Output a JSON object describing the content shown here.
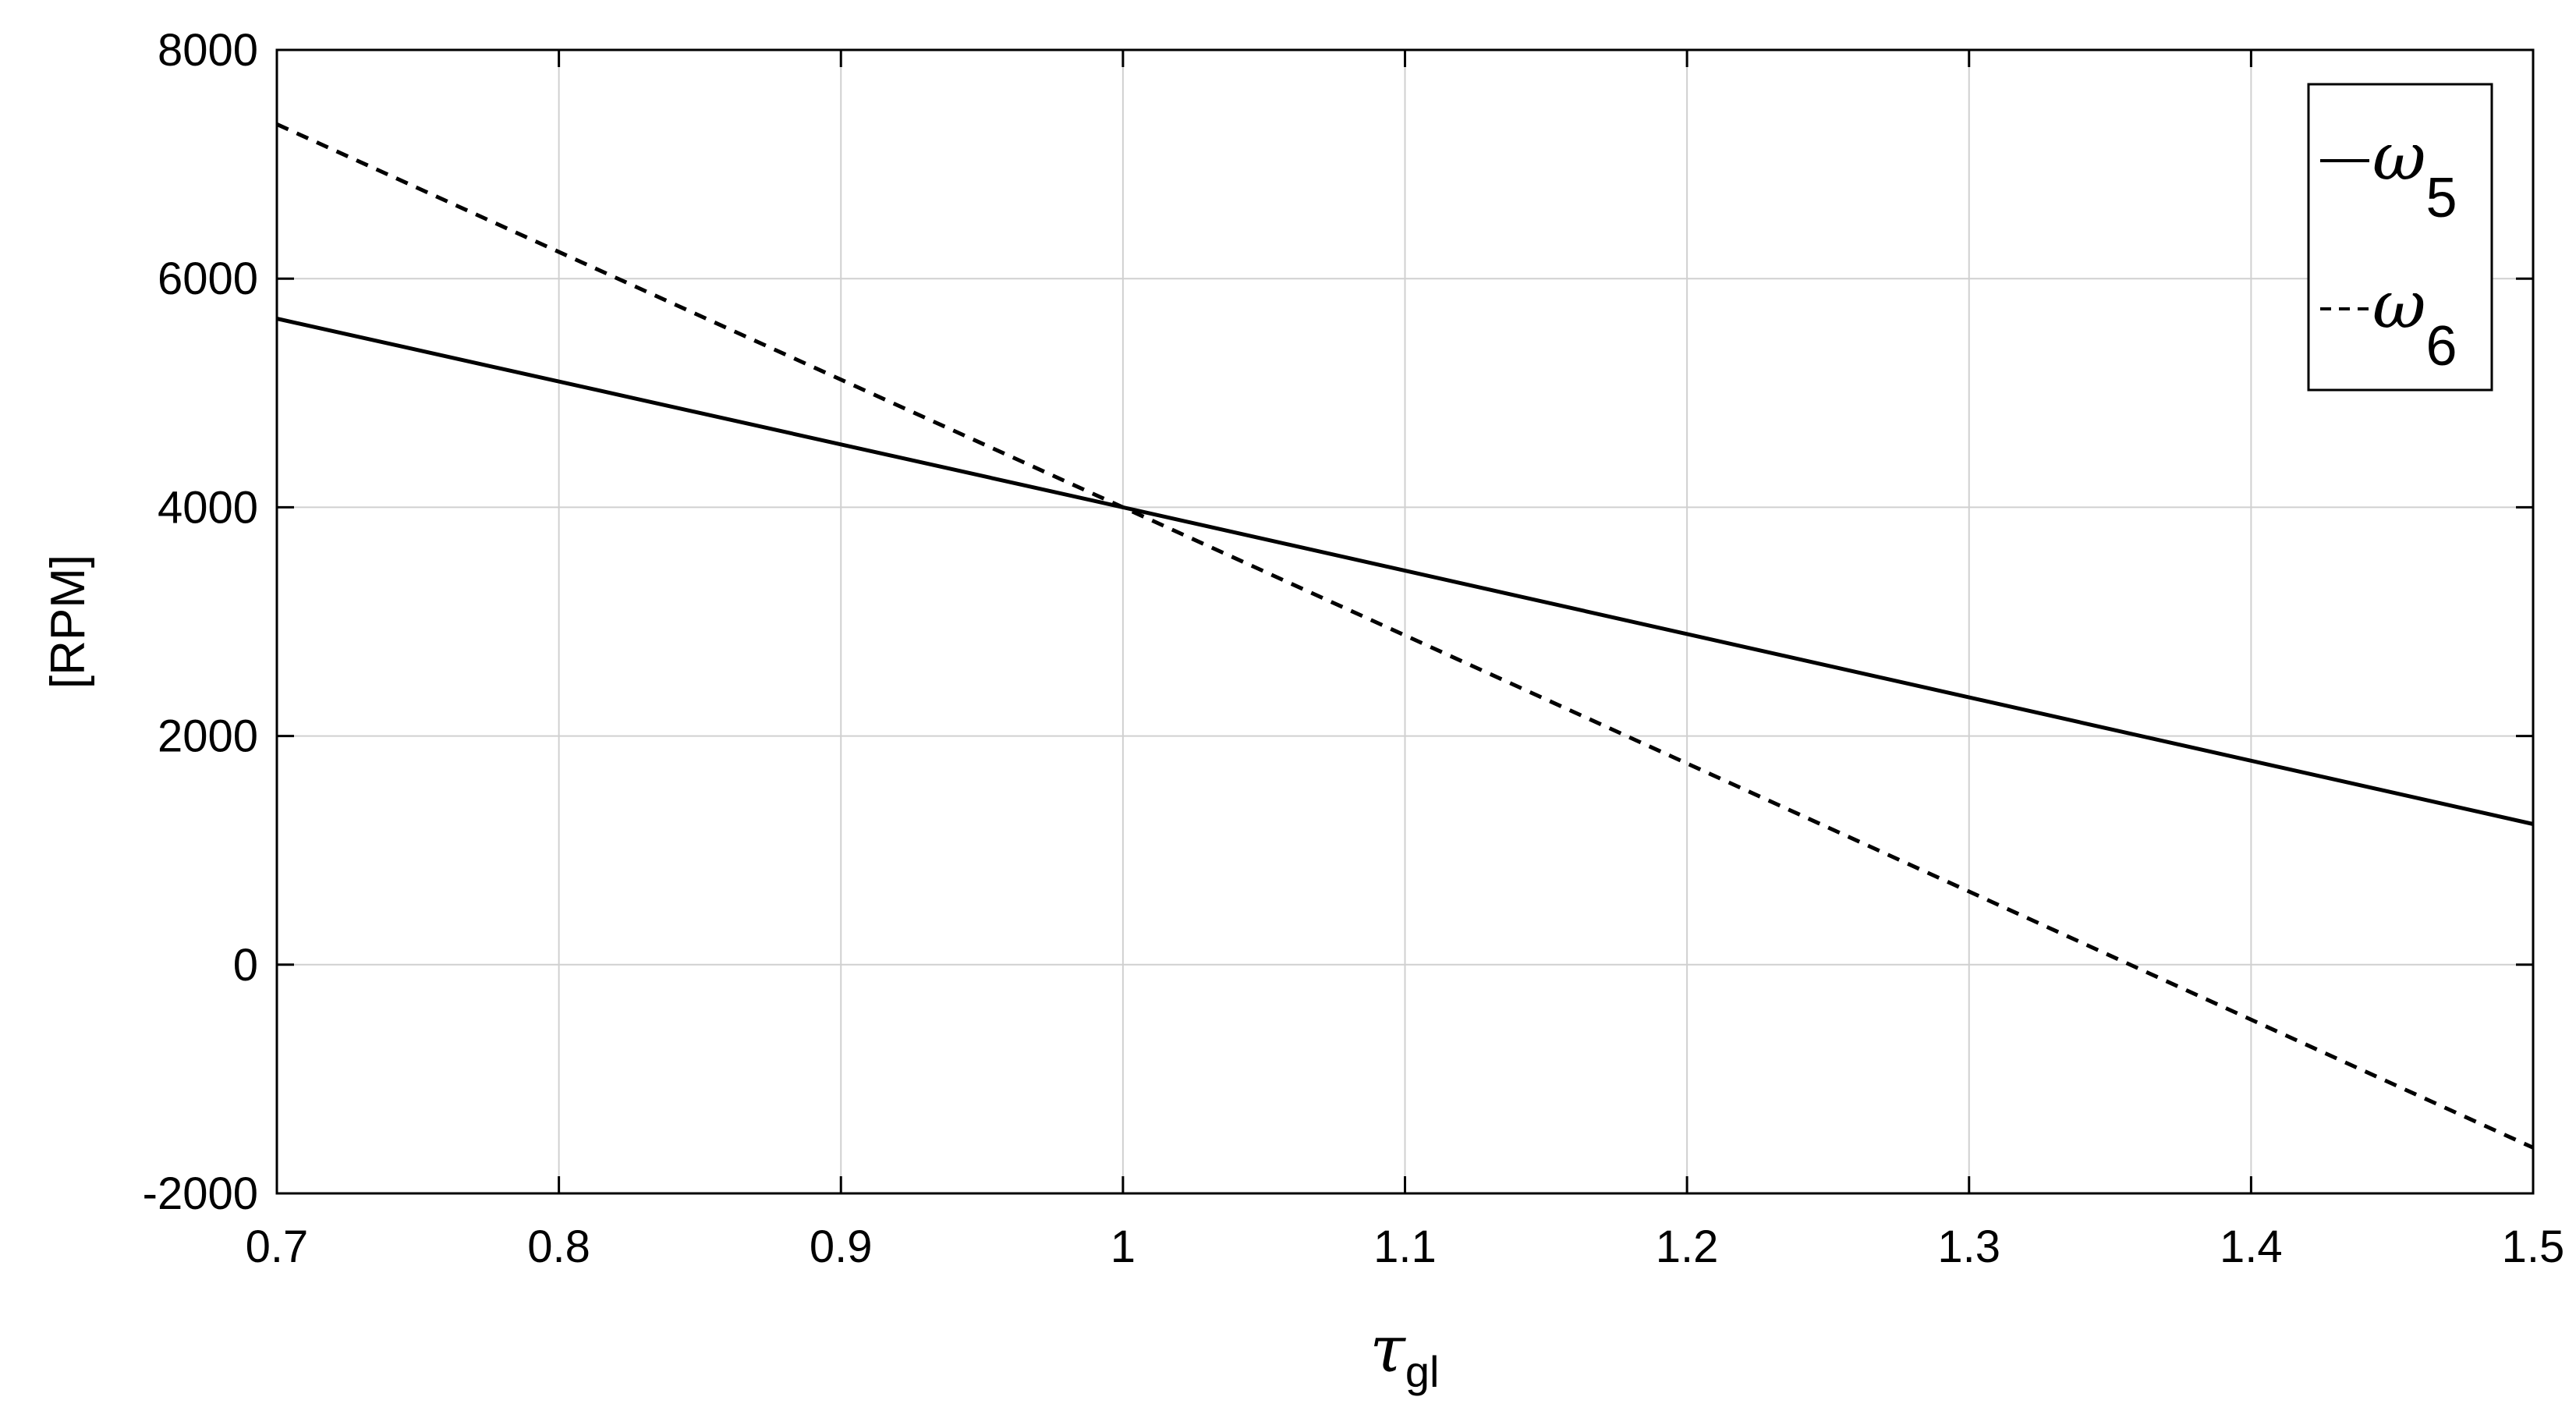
{
  "chart_data": {
    "type": "line",
    "title": "",
    "xlabel": {
      "symbol": "τ",
      "subscript": "gl"
    },
    "ylabel": "[RPM]",
    "xlim": [
      0.7,
      1.5
    ],
    "ylim": [
      -2000,
      8000
    ],
    "xticks": [
      0.7,
      0.8,
      0.9,
      1.0,
      1.1,
      1.2,
      1.3,
      1.4,
      1.5
    ],
    "xtick_labels": [
      "0.7",
      "0.8",
      "0.9",
      "1",
      "1.1",
      "1.2",
      "1.3",
      "1.4",
      "1.5"
    ],
    "yticks": [
      -2000,
      0,
      2000,
      4000,
      6000,
      8000
    ],
    "ytick_labels": [
      "-2000",
      "0",
      "2000",
      "4000",
      "6000",
      "8000"
    ],
    "grid": true,
    "legend_position": "top-right",
    "series": [
      {
        "name": "ω5",
        "legend": {
          "symbol": "ω",
          "subscript": "5"
        },
        "style": "solid",
        "color": "#000000",
        "x": [
          0.7,
          1.0,
          1.5
        ],
        "y": [
          5650,
          4000,
          1230
        ]
      },
      {
        "name": "ω6",
        "legend": {
          "symbol": "ω",
          "subscript": "6"
        },
        "style": "dashed",
        "color": "#000000",
        "x": [
          0.7,
          1.0,
          1.5
        ],
        "y": [
          7350,
          4000,
          -1600
        ]
      }
    ]
  }
}
